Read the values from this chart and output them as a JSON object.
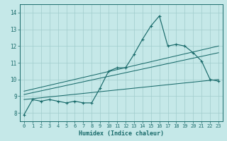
{
  "xlabel": "Humidex (Indice chaleur)",
  "xlim": [
    -0.5,
    23.5
  ],
  "ylim": [
    7.5,
    14.5
  ],
  "yticks": [
    8,
    9,
    10,
    11,
    12,
    13,
    14
  ],
  "xticks": [
    0,
    1,
    2,
    3,
    4,
    5,
    6,
    7,
    8,
    9,
    10,
    11,
    12,
    13,
    14,
    15,
    16,
    17,
    18,
    19,
    20,
    21,
    22,
    23
  ],
  "background_color": "#c5e8e8",
  "grid_color": "#a0cccc",
  "line_color": "#1a6b6b",
  "series": {
    "line1": {
      "x": [
        0,
        1,
        2,
        3,
        4,
        5,
        6,
        7,
        8,
        9,
        10,
        11,
        12,
        13,
        14,
        15,
        16,
        17,
        18,
        19,
        20,
        21,
        22,
        23
      ],
      "y": [
        7.9,
        8.8,
        8.7,
        8.8,
        8.7,
        8.6,
        8.7,
        8.6,
        8.6,
        9.5,
        10.5,
        10.7,
        10.7,
        11.5,
        12.4,
        13.2,
        13.8,
        12.0,
        12.1,
        12.0,
        11.6,
        11.1,
        10.0,
        9.9
      ]
    },
    "line2": {
      "x": [
        0,
        23
      ],
      "y": [
        8.8,
        10.0
      ]
    },
    "line3": {
      "x": [
        0,
        23
      ],
      "y": [
        9.1,
        11.6
      ]
    },
    "line4": {
      "x": [
        0,
        23
      ],
      "y": [
        9.3,
        12.0
      ]
    }
  }
}
